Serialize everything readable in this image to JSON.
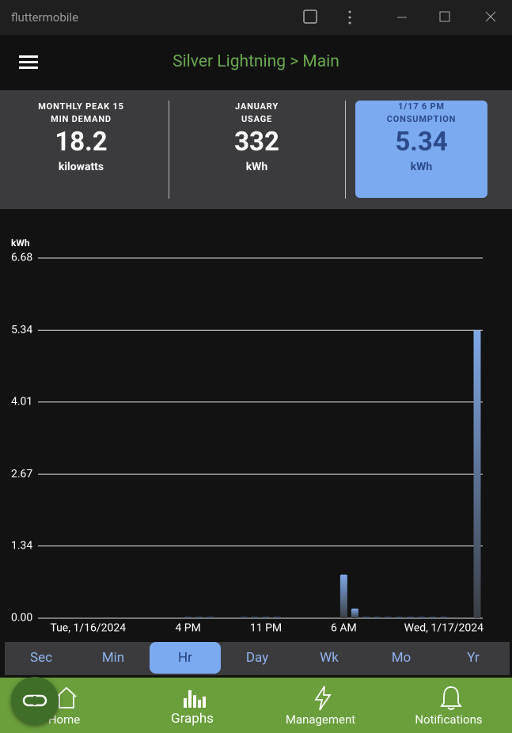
{
  "window": {
    "title": "fluttermobile"
  },
  "header": {
    "title": "Silver Lightning > Main"
  },
  "stats": [
    {
      "label": "MONTHLY PEAK 15 MIN DEMAND",
      "value": 18.2,
      "unit": "kilowatts"
    },
    {
      "label": "JANUARY USAGE",
      "value": 332,
      "unit": "kWh"
    },
    {
      "label": "1/17 6 PM CONSUMPTION",
      "value": 5.34,
      "unit": "kWh"
    }
  ],
  "highlighted_stat": 2,
  "chart_data": {
    "type": "bar",
    "y_label": "kWh",
    "categories": [
      null,
      null,
      null,
      null,
      "Tue, 1/16/2024",
      null,
      null,
      null,
      null,
      null,
      null,
      null,
      null,
      "4 PM",
      null,
      null,
      null,
      null,
      null,
      null,
      "11 PM",
      null,
      null,
      null,
      null,
      null,
      null,
      "6 AM",
      null,
      null,
      null,
      null,
      null,
      null,
      null,
      null,
      "Wed, 1/17/2024",
      null,
      null,
      null
    ],
    "values": [
      0,
      0,
      0,
      0,
      0,
      0,
      0,
      0,
      0,
      0,
      0,
      0,
      0,
      0.02,
      0.02,
      0.02,
      0,
      0,
      0.02,
      0.02,
      0.02,
      0.02,
      0,
      0,
      0,
      0,
      0,
      0.81,
      0.18,
      0.02,
      0.02,
      0.02,
      0.02,
      0.02,
      0.02,
      0.02,
      0.02,
      0,
      0,
      5.34
    ],
    "color": "#7fa8e8",
    "ylim": [
      0,
      6.68
    ],
    "yticks": [
      {
        "value": 0,
        "label": "0.00"
      },
      1.34,
      2.67,
      4.01,
      5.34,
      6.68
    ],
    "grid": true
  },
  "periods": [
    "Sec",
    "Min",
    "Hr",
    "Day",
    "Wk",
    "Mo",
    "Yr"
  ],
  "selected_period": 2,
  "nav": [
    "Home",
    "Graphs",
    "Management",
    "Notifications"
  ],
  "selected_nav": 1
}
